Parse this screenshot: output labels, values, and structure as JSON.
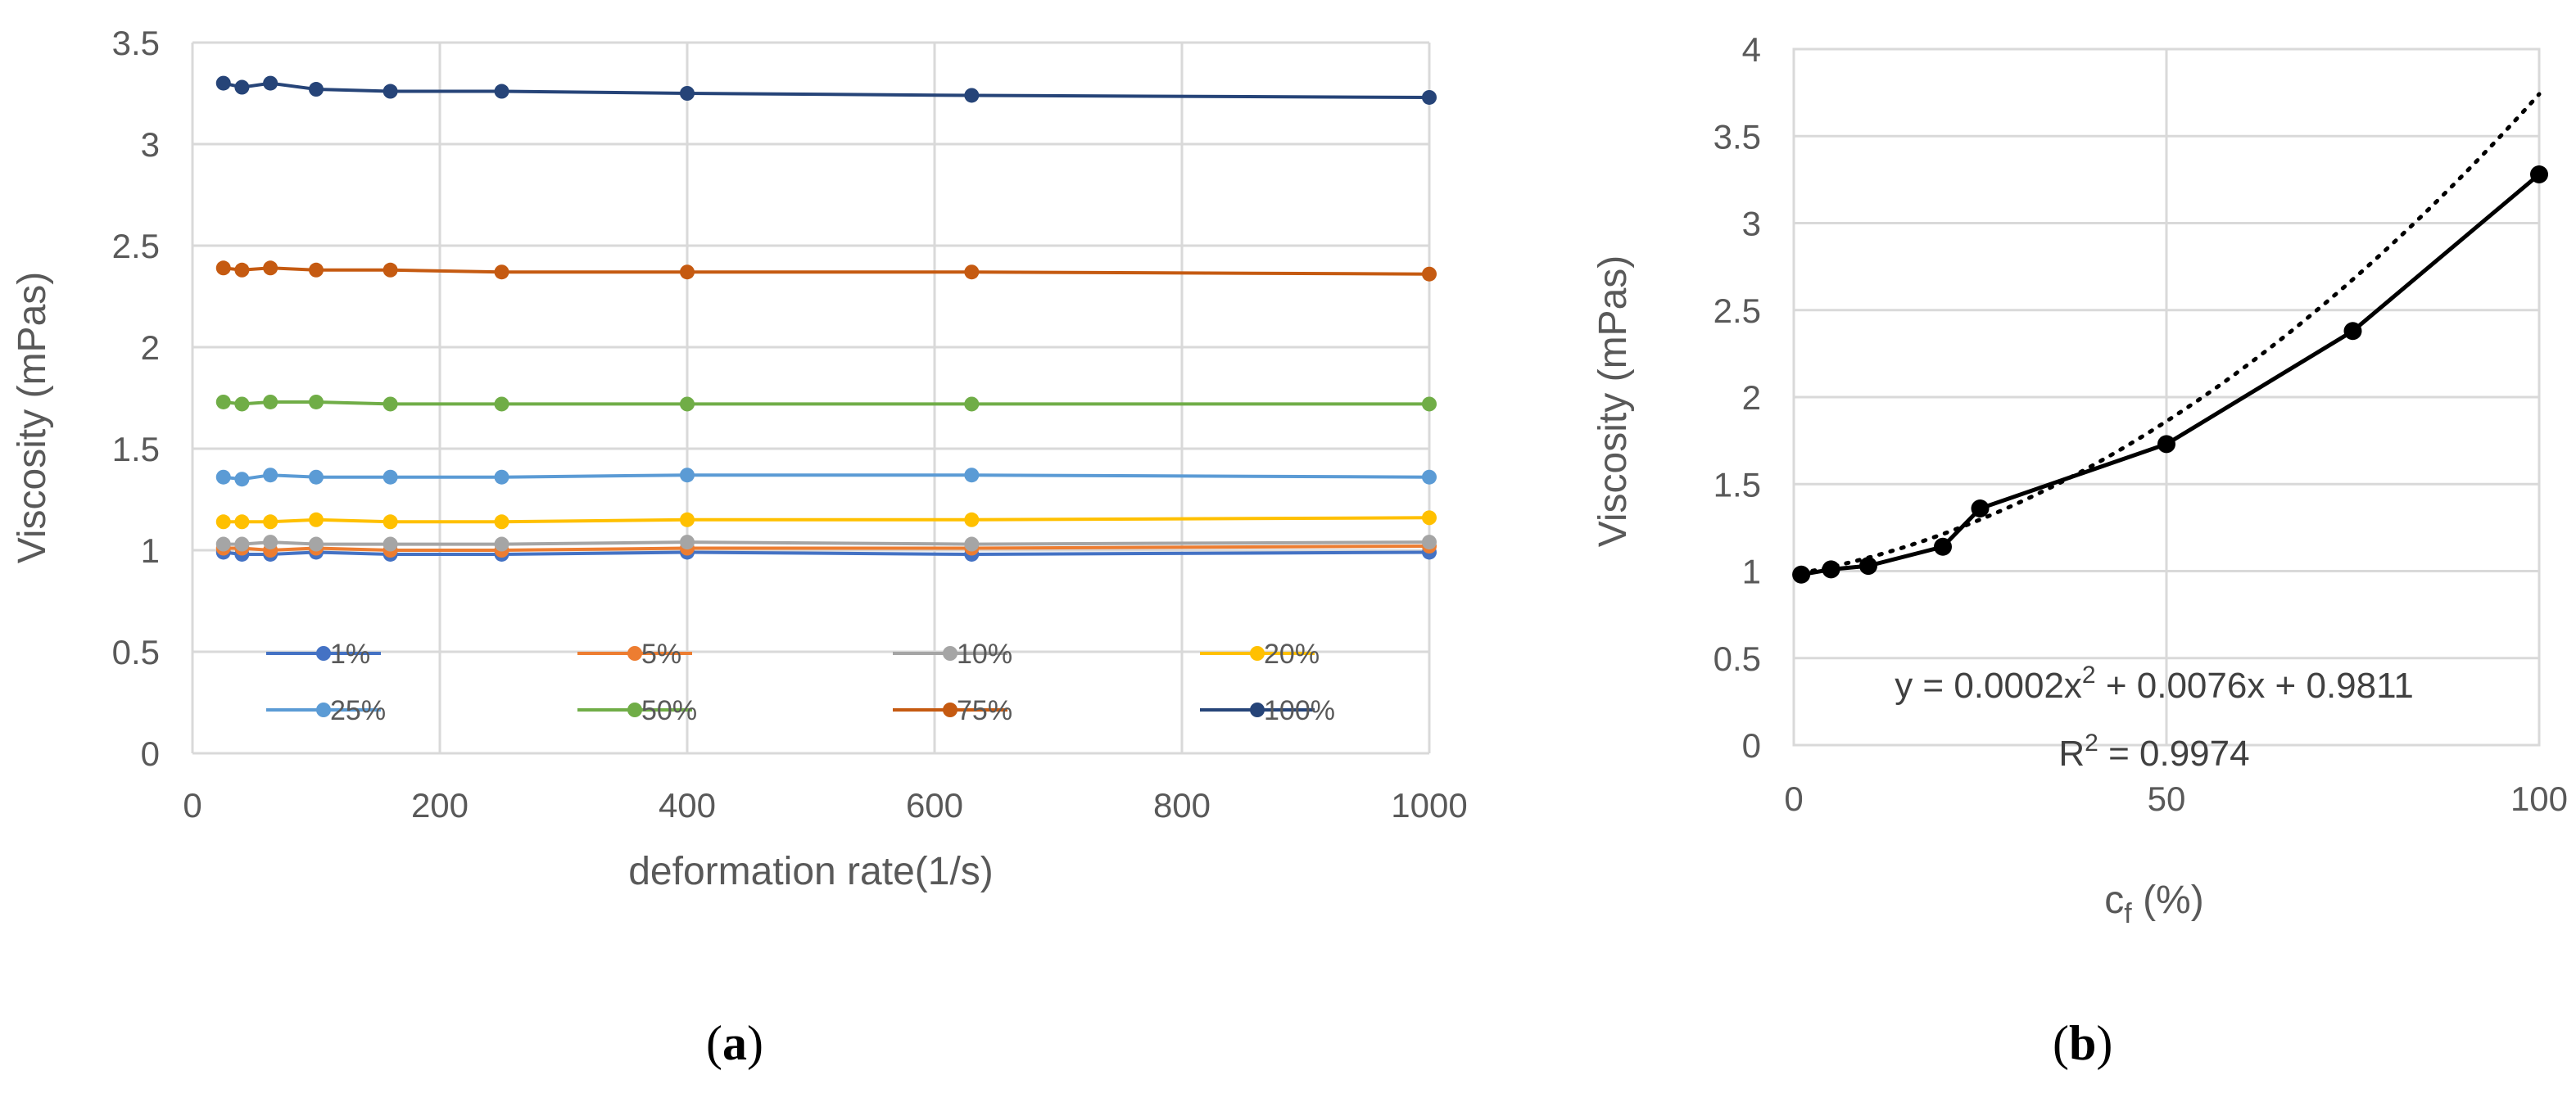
{
  "chart_data": [
    {
      "type": "line",
      "panel": "a",
      "xlabel": "deformation rate(1/s)",
      "ylabel": "Viscosity (mPas)",
      "xlim": [
        0,
        1000
      ],
      "ylim": [
        0,
        3.5
      ],
      "xticks": [
        0,
        200,
        400,
        600,
        800,
        1000
      ],
      "yticks": [
        0,
        0.5,
        1,
        1.5,
        2,
        2.5,
        3,
        3.5
      ],
      "xtick_labels": [
        "0",
        "200",
        "400",
        "600",
        "800",
        "1000"
      ],
      "ytick_labels": [
        "0",
        "0.5",
        "1",
        "1.5",
        "2",
        "2.5",
        "3",
        "3.5"
      ],
      "grid": true,
      "legend_position": "lower inside",
      "x": [
        25,
        40,
        63,
        100,
        160,
        250,
        400,
        630,
        1000
      ],
      "series": [
        {
          "name": "1%",
          "color": "#4472c4",
          "values": [
            0.99,
            0.98,
            0.98,
            0.99,
            0.98,
            0.98,
            0.99,
            0.98,
            0.99
          ]
        },
        {
          "name": "5%",
          "color": "#ed7d31",
          "values": [
            1.01,
            1.01,
            1.0,
            1.01,
            1.0,
            1.0,
            1.01,
            1.01,
            1.02
          ]
        },
        {
          "name": "10%",
          "color": "#a5a5a5",
          "values": [
            1.03,
            1.03,
            1.04,
            1.03,
            1.03,
            1.03,
            1.04,
            1.03,
            1.04
          ]
        },
        {
          "name": "20%",
          "color": "#ffc000",
          "values": [
            1.14,
            1.14,
            1.14,
            1.15,
            1.14,
            1.14,
            1.15,
            1.15,
            1.16
          ]
        },
        {
          "name": "25%",
          "color": "#5b9bd5",
          "values": [
            1.36,
            1.35,
            1.37,
            1.36,
            1.36,
            1.36,
            1.37,
            1.37,
            1.36
          ]
        },
        {
          "name": "50%",
          "color": "#70ad47",
          "values": [
            1.73,
            1.72,
            1.73,
            1.73,
            1.72,
            1.72,
            1.72,
            1.72,
            1.72
          ]
        },
        {
          "name": "75%",
          "color": "#c55a11",
          "values": [
            2.39,
            2.38,
            2.39,
            2.38,
            2.38,
            2.37,
            2.37,
            2.37,
            2.36
          ]
        },
        {
          "name": "100%",
          "color": "#264478",
          "values": [
            3.3,
            3.28,
            3.3,
            3.27,
            3.26,
            3.26,
            3.25,
            3.24,
            3.23
          ]
        }
      ]
    },
    {
      "type": "scatter",
      "panel": "b",
      "xlabel_base": "c",
      "xlabel_sub": "f",
      "xlabel_tail": " (%)",
      "ylabel": "Viscosity (mPas)",
      "xlim": [
        0,
        100
      ],
      "ylim": [
        0,
        4
      ],
      "xticks": [
        0,
        50,
        100
      ],
      "yticks": [
        0,
        0.5,
        1,
        1.5,
        2,
        2.5,
        3,
        3.5,
        4
      ],
      "xtick_labels": [
        "0",
        "50",
        "100"
      ],
      "ytick_labels": [
        "0",
        "0.5",
        "1",
        "1.5",
        "2",
        "2.5",
        "3",
        "3.5",
        "4"
      ],
      "grid": true,
      "series": [
        {
          "name": "viscosity",
          "color": "#000000",
          "x": [
            1,
            5,
            10,
            20,
            25,
            50,
            75,
            100
          ],
          "values": [
            0.98,
            1.01,
            1.03,
            1.14,
            1.36,
            1.73,
            2.38,
            3.28
          ]
        }
      ],
      "trendline": {
        "type": "polynomial",
        "degree": 2,
        "coefficients": [
          0.0002,
          0.0076,
          0.9811
        ],
        "style": "dotted"
      },
      "equation_parts": [
        "y = 0.0002x",
        "2",
        " + 0.0076x + 0.9811"
      ],
      "r2_parts": [
        "R",
        "2",
        " = 0.9974"
      ]
    }
  ],
  "captions": {
    "a": {
      "open": "(",
      "letter": "a",
      "close": ")"
    },
    "b": {
      "open": "(",
      "letter": "b",
      "close": ")"
    }
  }
}
